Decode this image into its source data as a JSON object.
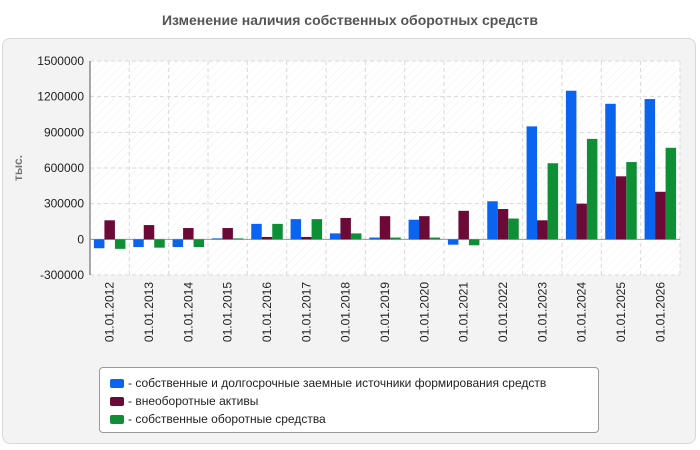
{
  "chart_data": {
    "type": "bar",
    "title": "Изменение наличия собственных оборотных средств",
    "ylabel": "тыс.",
    "xlabel": "",
    "ylim": [
      -300000,
      1500000
    ],
    "yticks": [
      1500000,
      1200000,
      900000,
      600000,
      300000,
      0,
      -300000
    ],
    "grid": true,
    "legend_position": "bottom",
    "categories": [
      "01.01.2012",
      "01.01.2013",
      "01.01.2014",
      "01.01.2015",
      "01.01.2016",
      "01.01.2017",
      "01.01.2018",
      "01.01.2019",
      "01.01.2020",
      "01.01.2021",
      "01.01.2022",
      "01.01.2023",
      "01.01.2024",
      "01.01.2025",
      "01.01.2026"
    ],
    "series": [
      {
        "name": "- собственные и долгосрочные заемные источники формирования средств",
        "color": "#0a64f0",
        "values": [
          -75000,
          -65000,
          -65000,
          8000,
          130000,
          170000,
          50000,
          15000,
          165000,
          -45000,
          320000,
          950000,
          1250000,
          1140000,
          1180000
        ]
      },
      {
        "name": "- внеоборотные активы",
        "color": "#6b0a36",
        "values": [
          160000,
          120000,
          95000,
          95000,
          20000,
          20000,
          180000,
          195000,
          195000,
          240000,
          255000,
          160000,
          300000,
          530000,
          400000
        ]
      },
      {
        "name": "- собственные оборотные средства",
        "color": "#0e8f36",
        "values": [
          -80000,
          -70000,
          -65000,
          8000,
          130000,
          170000,
          50000,
          15000,
          15000,
          -50000,
          175000,
          640000,
          845000,
          650000,
          770000
        ]
      }
    ]
  }
}
